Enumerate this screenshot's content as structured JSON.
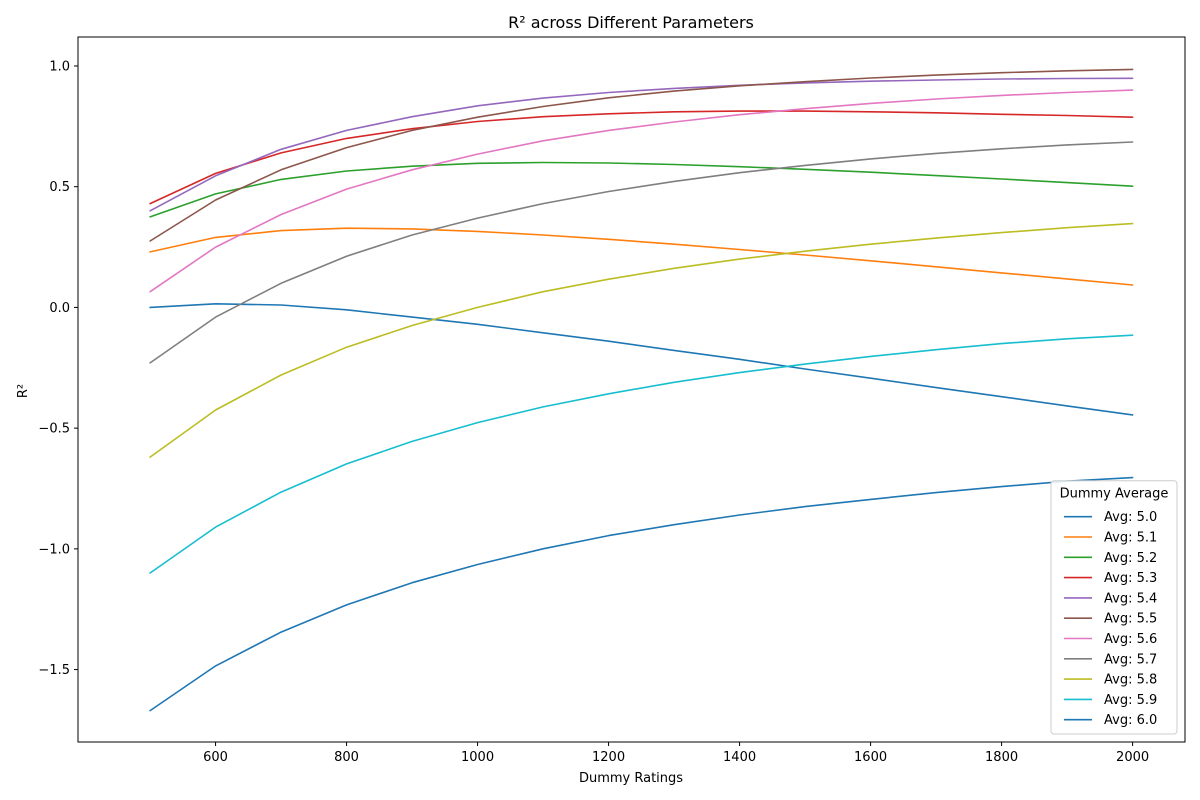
{
  "chart_data": {
    "type": "line",
    "title": "R² across Different Parameters",
    "xlabel": "Dummy Ratings",
    "ylabel": "R²",
    "xlim": [
      390,
      2080
    ],
    "ylim": [
      -1.8,
      1.12
    ],
    "xticks": [
      600,
      800,
      1000,
      1200,
      1400,
      1600,
      1800,
      2000
    ],
    "yticks": [
      -1.5,
      -1.0,
      -0.5,
      0.0,
      0.5,
      1.0
    ],
    "ytick_labels": [
      "−1.5",
      "−1.0",
      "−0.5",
      "0.0",
      "0.5",
      "1.0"
    ],
    "grid": false,
    "legend_title": "Dummy Average",
    "legend_position": "bottom-right",
    "x": [
      500,
      600,
      700,
      800,
      900,
      1000,
      1100,
      1200,
      1300,
      1400,
      1500,
      1600,
      1700,
      1800,
      1900,
      2000
    ],
    "series": [
      {
        "name": "Avg: 5.0",
        "color": "#1f77b4",
        "values": [
          0.0,
          0.015,
          0.01,
          -0.01,
          -0.04,
          -0.07,
          -0.105,
          -0.14,
          -0.178,
          -0.215,
          -0.255,
          -0.293,
          -0.332,
          -0.37,
          -0.408,
          -0.445
        ]
      },
      {
        "name": "Avg: 5.1",
        "color": "#ff7f0e",
        "values": [
          0.23,
          0.29,
          0.318,
          0.328,
          0.325,
          0.315,
          0.3,
          0.282,
          0.262,
          0.24,
          0.217,
          0.193,
          0.168,
          0.143,
          0.118,
          0.093
        ]
      },
      {
        "name": "Avg: 5.2",
        "color": "#2ca02c",
        "values": [
          0.375,
          0.47,
          0.53,
          0.565,
          0.585,
          0.597,
          0.6,
          0.598,
          0.592,
          0.583,
          0.572,
          0.56,
          0.546,
          0.532,
          0.517,
          0.502
        ]
      },
      {
        "name": "Avg: 5.3",
        "color": "#d62728",
        "values": [
          0.43,
          0.555,
          0.64,
          0.7,
          0.74,
          0.77,
          0.79,
          0.802,
          0.81,
          0.813,
          0.813,
          0.81,
          0.806,
          0.8,
          0.795,
          0.788
        ]
      },
      {
        "name": "Avg: 5.4",
        "color": "#9467bd",
        "values": [
          0.4,
          0.545,
          0.655,
          0.733,
          0.79,
          0.835,
          0.867,
          0.89,
          0.907,
          0.92,
          0.93,
          0.937,
          0.942,
          0.946,
          0.948,
          0.949
        ]
      },
      {
        "name": "Avg: 5.5",
        "color": "#8c564b",
        "values": [
          0.275,
          0.445,
          0.57,
          0.662,
          0.733,
          0.788,
          0.832,
          0.868,
          0.896,
          0.918,
          0.935,
          0.95,
          0.962,
          0.972,
          0.98,
          0.986
        ]
      },
      {
        "name": "Avg: 5.6",
        "color": "#e377c2",
        "values": [
          0.065,
          0.25,
          0.385,
          0.49,
          0.57,
          0.635,
          0.69,
          0.733,
          0.768,
          0.798,
          0.823,
          0.845,
          0.863,
          0.878,
          0.89,
          0.9
        ]
      },
      {
        "name": "Avg: 5.7",
        "color": "#7f7f7f",
        "values": [
          -0.23,
          -0.04,
          0.1,
          0.212,
          0.3,
          0.37,
          0.43,
          0.48,
          0.522,
          0.558,
          0.588,
          0.615,
          0.638,
          0.657,
          0.673,
          0.685
        ]
      },
      {
        "name": "Avg: 5.8",
        "color": "#bcbd22",
        "values": [
          -0.62,
          -0.425,
          -0.28,
          -0.165,
          -0.075,
          0.0,
          0.065,
          0.117,
          0.162,
          0.2,
          0.233,
          0.262,
          0.287,
          0.31,
          0.33,
          0.347
        ]
      },
      {
        "name": "Avg: 5.9",
        "color": "#17becf",
        "values": [
          -1.1,
          -0.91,
          -0.765,
          -0.648,
          -0.555,
          -0.477,
          -0.412,
          -0.358,
          -0.31,
          -0.27,
          -0.235,
          -0.203,
          -0.175,
          -0.15,
          -0.13,
          -0.115
        ]
      },
      {
        "name": "Avg: 6.0",
        "color": "#1f77b4",
        "values": [
          -1.67,
          -1.485,
          -1.345,
          -1.232,
          -1.14,
          -1.065,
          -1.0,
          -0.945,
          -0.9,
          -0.86,
          -0.825,
          -0.795,
          -0.767,
          -0.742,
          -0.72,
          -0.705
        ]
      }
    ]
  }
}
